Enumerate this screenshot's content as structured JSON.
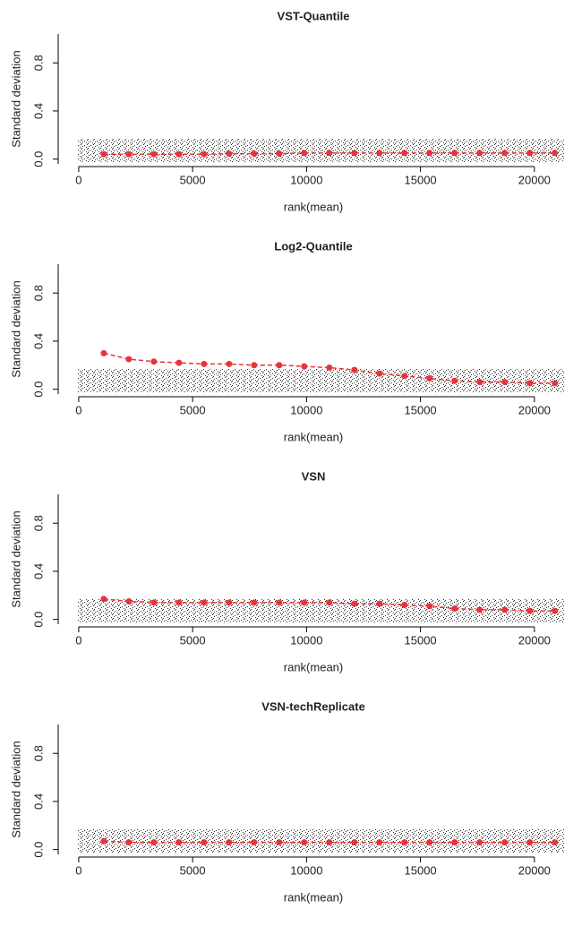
{
  "chart_data": [
    {
      "type": "scatter",
      "title": "VST-Quantile",
      "xlabel": "rank(mean)",
      "ylabel": "Standard deviation",
      "x": [
        1100,
        2200,
        3300,
        4400,
        5500,
        6600,
        7700,
        8800,
        9900,
        11000,
        12100,
        13200,
        14300,
        15400,
        16500,
        17600,
        18700,
        19800,
        20900
      ],
      "series": [
        {
          "color": "#e8323c",
          "values": [
            0.04,
            0.04,
            0.04,
            0.04,
            0.04,
            0.045,
            0.045,
            0.045,
            0.05,
            0.05,
            0.05,
            0.05,
            0.05,
            0.05,
            0.05,
            0.05,
            0.05,
            0.05,
            0.05
          ]
        }
      ],
      "xlim": [
        -900,
        21500
      ],
      "ylim": [
        -0.04,
        1.04
      ],
      "xticks": [
        0,
        5000,
        10000,
        15000,
        20000
      ],
      "yticks": [
        {
          "value": 0,
          "label": "0.0"
        },
        0.4,
        0.8
      ]
    },
    {
      "type": "scatter",
      "title": "Log2-Quantile",
      "xlabel": "rank(mean)",
      "ylabel": "Standard deviation",
      "x": [
        1100,
        2200,
        3300,
        4400,
        5500,
        6600,
        7700,
        8800,
        9900,
        11000,
        12100,
        13200,
        14300,
        15400,
        16500,
        17600,
        18700,
        19800,
        20900
      ],
      "series": [
        {
          "color": "#e8323c",
          "values": [
            0.3,
            0.25,
            0.23,
            0.22,
            0.21,
            0.21,
            0.2,
            0.2,
            0.19,
            0.18,
            0.16,
            0.13,
            0.11,
            0.09,
            0.07,
            0.06,
            0.06,
            0.05,
            0.05
          ]
        }
      ],
      "xlim": [
        -900,
        21500
      ],
      "ylim": [
        -0.04,
        1.04
      ],
      "xticks": [
        0,
        5000,
        10000,
        15000,
        20000
      ],
      "yticks": [
        {
          "value": 0,
          "label": "0.0"
        },
        0.4,
        0.8
      ]
    },
    {
      "type": "scatter",
      "title": "VSN",
      "xlabel": "rank(mean)",
      "ylabel": "Standard deviation",
      "x": [
        1100,
        2200,
        3300,
        4400,
        5500,
        6600,
        7700,
        8800,
        9900,
        11000,
        12100,
        13200,
        14300,
        15400,
        16500,
        17600,
        18700,
        19800,
        20900
      ],
      "series": [
        {
          "color": "#e8323c",
          "values": [
            0.17,
            0.15,
            0.14,
            0.14,
            0.14,
            0.14,
            0.14,
            0.14,
            0.14,
            0.14,
            0.13,
            0.13,
            0.12,
            0.11,
            0.09,
            0.08,
            0.08,
            0.07,
            0.07
          ]
        }
      ],
      "xlim": [
        -900,
        21500
      ],
      "ylim": [
        -0.04,
        1.04
      ],
      "xticks": [
        0,
        5000,
        10000,
        15000,
        20000
      ],
      "yticks": [
        {
          "value": 0,
          "label": "0.0"
        },
        0.4,
        0.8
      ]
    },
    {
      "type": "scatter",
      "title": "VSN-techReplicate",
      "xlabel": "rank(mean)",
      "ylabel": "Standard deviation",
      "x": [
        1100,
        2200,
        3300,
        4400,
        5500,
        6600,
        7700,
        8800,
        9900,
        11000,
        12100,
        13200,
        14300,
        15400,
        16500,
        17600,
        18700,
        19800,
        20900
      ],
      "series": [
        {
          "color": "#e8323c",
          "values": [
            0.07,
            0.06,
            0.06,
            0.06,
            0.06,
            0.06,
            0.06,
            0.06,
            0.06,
            0.06,
            0.06,
            0.06,
            0.06,
            0.06,
            0.06,
            0.06,
            0.06,
            0.06,
            0.06
          ]
        }
      ],
      "xlim": [
        -900,
        21500
      ],
      "ylim": [
        -0.04,
        1.04
      ],
      "xticks": [
        0,
        5000,
        10000,
        15000,
        20000
      ],
      "yticks": [
        {
          "value": 0,
          "label": "0.0"
        },
        0.4,
        0.8
      ]
    }
  ]
}
